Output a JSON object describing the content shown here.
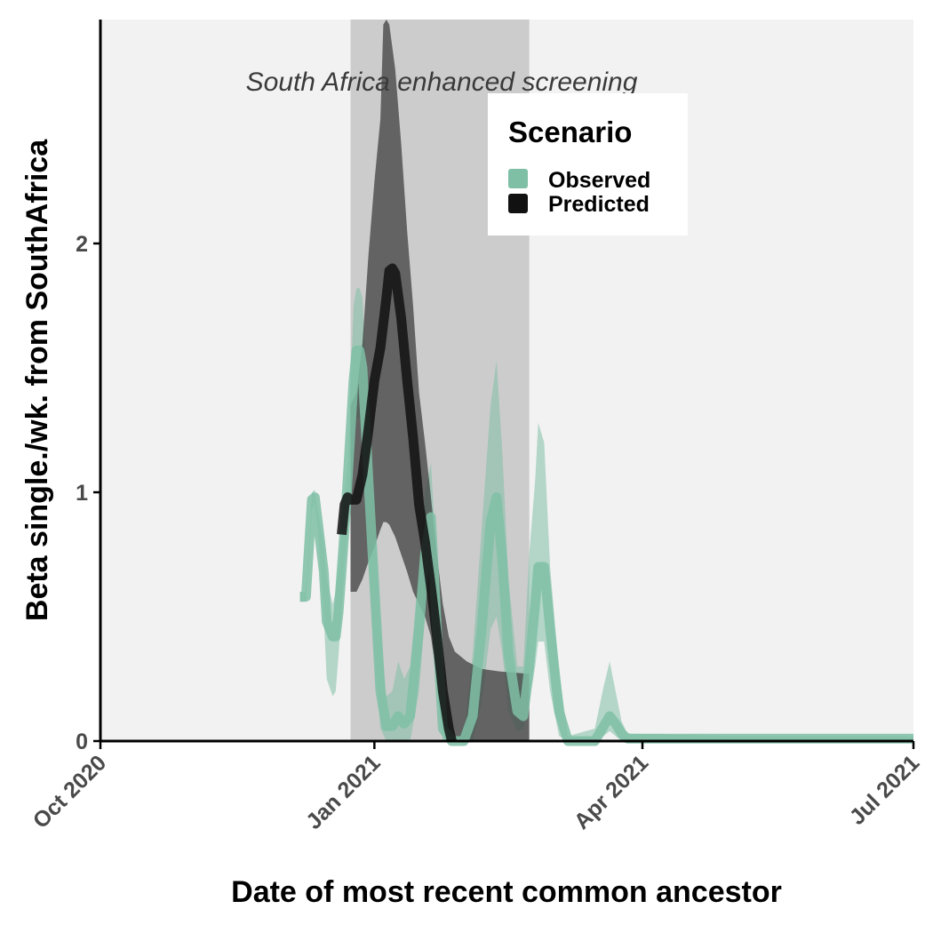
{
  "chart_data": {
    "type": "line",
    "xlabel": "Date of most recent common ancestor",
    "ylabel": "Beta single./wk. from SouthAfrica",
    "x_ticks": [
      "2020-10-01",
      "2021-01-01",
      "2021-04-01",
      "2021-07-01"
    ],
    "x_tick_labels": [
      "Oct 2020",
      "Jan 2021",
      "Apr 2021",
      "Jul 2021"
    ],
    "xlim": [
      "2020-10-01",
      "2021-07-01"
    ],
    "ylim": [
      0,
      2.9
    ],
    "y_ticks": [
      0,
      1,
      2
    ],
    "y_tick_labels": [
      "0",
      "1",
      "2"
    ],
    "grid": false,
    "panel_background": "#f2f2f2",
    "highlight_period": {
      "start": "2020-12-24",
      "end": "2021-02-22",
      "label": "South Africa enhanced screening",
      "color": "#cccccc"
    },
    "legend": {
      "title": "Scenario",
      "placement": "top-right",
      "entries": [
        {
          "label": "Observed",
          "color": "#7fbfa6"
        },
        {
          "label": "Predicted",
          "color": "#111111"
        }
      ]
    },
    "series": [
      {
        "name": "Observed",
        "color": "#7fbfa6",
        "points": [
          [
            "2020-12-07",
            0.58
          ],
          [
            "2020-12-09",
            0.58
          ],
          [
            "2020-12-11",
            0.97
          ],
          [
            "2020-12-12",
            0.98
          ],
          [
            "2020-12-13",
            0.88
          ],
          [
            "2020-12-15",
            0.68
          ],
          [
            "2020-12-16",
            0.48
          ],
          [
            "2020-12-18",
            0.42
          ],
          [
            "2020-12-19",
            0.42
          ],
          [
            "2020-12-20",
            0.52
          ],
          [
            "2020-12-22",
            0.85
          ],
          [
            "2020-12-23",
            1.05
          ],
          [
            "2020-12-25",
            1.45
          ],
          [
            "2020-12-26",
            1.57
          ],
          [
            "2020-12-27",
            1.57
          ],
          [
            "2020-12-28",
            1.5
          ],
          [
            "2020-12-30",
            1.05
          ],
          [
            "2021-01-01",
            0.62
          ],
          [
            "2021-01-03",
            0.2
          ],
          [
            "2021-01-05",
            0.06
          ],
          [
            "2021-01-07",
            0.06
          ],
          [
            "2021-01-09",
            0.1
          ],
          [
            "2021-01-11",
            0.07
          ],
          [
            "2021-01-13",
            0.1
          ],
          [
            "2021-01-16",
            0.45
          ],
          [
            "2021-01-18",
            0.75
          ],
          [
            "2021-01-20",
            0.9
          ],
          [
            "2021-01-22",
            0.45
          ],
          [
            "2021-01-24",
            0.05
          ],
          [
            "2021-01-27",
            0.0
          ],
          [
            "2021-01-31",
            0.0
          ],
          [
            "2021-02-03",
            0.1
          ],
          [
            "2021-02-06",
            0.45
          ],
          [
            "2021-02-09",
            0.88
          ],
          [
            "2021-02-11",
            0.98
          ],
          [
            "2021-02-13",
            0.72
          ],
          [
            "2021-02-15",
            0.35
          ],
          [
            "2021-02-18",
            0.12
          ],
          [
            "2021-02-20",
            0.1
          ],
          [
            "2021-02-22",
            0.3
          ],
          [
            "2021-02-24",
            0.55
          ],
          [
            "2021-02-25",
            0.7
          ],
          [
            "2021-02-27",
            0.7
          ],
          [
            "2021-03-01",
            0.45
          ],
          [
            "2021-03-04",
            0.12
          ],
          [
            "2021-03-07",
            0.0
          ],
          [
            "2021-03-16",
            0.0
          ],
          [
            "2021-03-19",
            0.06
          ],
          [
            "2021-03-21",
            0.1
          ],
          [
            "2021-03-23",
            0.07
          ],
          [
            "2021-03-25",
            0.03
          ],
          [
            "2021-03-27",
            0.01
          ],
          [
            "2021-05-01",
            0.01
          ],
          [
            "2021-06-01",
            0.01
          ],
          [
            "2021-07-01",
            0.01
          ]
        ],
        "ribbon": [
          [
            "2020-12-07",
            0.56,
            0.6
          ],
          [
            "2020-12-09",
            0.56,
            0.6
          ],
          [
            "2020-12-11",
            0.93,
            1.0
          ],
          [
            "2020-12-12",
            0.95,
            1.01
          ],
          [
            "2020-12-13",
            0.85,
            0.92
          ],
          [
            "2020-12-15",
            0.5,
            0.8
          ],
          [
            "2020-12-16",
            0.25,
            0.65
          ],
          [
            "2020-12-18",
            0.18,
            0.55
          ],
          [
            "2020-12-19",
            0.2,
            0.6
          ],
          [
            "2020-12-20",
            0.35,
            0.7
          ],
          [
            "2020-12-22",
            0.7,
            1.0
          ],
          [
            "2020-12-23",
            0.85,
            1.1
          ],
          [
            "2020-12-25",
            1.15,
            1.75
          ],
          [
            "2020-12-26",
            1.3,
            1.82
          ],
          [
            "2020-12-27",
            1.3,
            1.82
          ],
          [
            "2020-12-28",
            1.2,
            1.78
          ],
          [
            "2020-12-30",
            0.75,
            1.35
          ],
          [
            "2021-01-01",
            0.35,
            0.9
          ],
          [
            "2021-01-03",
            0.05,
            0.45
          ],
          [
            "2021-01-05",
            0.0,
            0.18
          ],
          [
            "2021-01-07",
            0.0,
            0.2
          ],
          [
            "2021-01-09",
            0.0,
            0.32
          ],
          [
            "2021-01-11",
            0.0,
            0.25
          ],
          [
            "2021-01-13",
            0.0,
            0.3
          ],
          [
            "2021-01-16",
            0.2,
            0.7
          ],
          [
            "2021-01-18",
            0.5,
            1.0
          ],
          [
            "2021-01-20",
            0.65,
            1.12
          ],
          [
            "2021-01-22",
            0.2,
            0.7
          ],
          [
            "2021-01-24",
            0.0,
            0.2
          ],
          [
            "2021-01-27",
            0.0,
            0.02
          ],
          [
            "2021-01-31",
            0.0,
            0.02
          ],
          [
            "2021-02-03",
            0.0,
            0.35
          ],
          [
            "2021-02-06",
            0.15,
            0.85
          ],
          [
            "2021-02-09",
            0.45,
            1.35
          ],
          [
            "2021-02-11",
            0.5,
            1.53
          ],
          [
            "2021-02-13",
            0.35,
            1.15
          ],
          [
            "2021-02-15",
            0.12,
            0.65
          ],
          [
            "2021-02-18",
            0.04,
            0.3
          ],
          [
            "2021-02-20",
            0.05,
            0.3
          ],
          [
            "2021-02-22",
            0.15,
            0.75
          ],
          [
            "2021-02-24",
            0.3,
            1.05
          ],
          [
            "2021-02-25",
            0.4,
            1.28
          ],
          [
            "2021-02-27",
            0.4,
            1.2
          ],
          [
            "2021-03-01",
            0.2,
            0.7
          ],
          [
            "2021-03-04",
            0.02,
            0.28
          ],
          [
            "2021-03-07",
            0.0,
            0.02
          ],
          [
            "2021-03-16",
            0.0,
            0.05
          ],
          [
            "2021-03-19",
            0.02,
            0.22
          ],
          [
            "2021-03-21",
            0.04,
            0.32
          ],
          [
            "2021-03-23",
            0.02,
            0.2
          ],
          [
            "2021-03-25",
            0.0,
            0.08
          ],
          [
            "2021-03-27",
            0.0,
            0.03
          ],
          [
            "2021-05-01",
            0.0,
            0.02
          ],
          [
            "2021-06-01",
            0.0,
            0.02
          ],
          [
            "2021-07-01",
            0.0,
            0.02
          ]
        ]
      },
      {
        "name": "Predicted",
        "color": "#111111",
        "points": [
          [
            "2020-12-21",
            0.83
          ],
          [
            "2020-12-22",
            0.95
          ],
          [
            "2020-12-23",
            0.98
          ],
          [
            "2020-12-24",
            0.97
          ],
          [
            "2020-12-26",
            0.97
          ],
          [
            "2020-12-28",
            1.07
          ],
          [
            "2020-12-30",
            1.25
          ],
          [
            "2021-01-01",
            1.45
          ],
          [
            "2021-01-03",
            1.58
          ],
          [
            "2021-01-05",
            1.78
          ],
          [
            "2021-01-06",
            1.89
          ],
          [
            "2021-01-07",
            1.9
          ],
          [
            "2021-01-08",
            1.88
          ],
          [
            "2021-01-10",
            1.7
          ],
          [
            "2021-01-12",
            1.45
          ],
          [
            "2021-01-14",
            1.22
          ],
          [
            "2021-01-16",
            0.95
          ],
          [
            "2021-01-18",
            0.8
          ],
          [
            "2021-01-20",
            0.62
          ],
          [
            "2021-01-22",
            0.42
          ],
          [
            "2021-01-24",
            0.2
          ],
          [
            "2021-01-26",
            0.05
          ],
          [
            "2021-01-27",
            0.0
          ]
        ],
        "ribbon": [
          [
            "2020-12-24",
            0.6,
            1.35
          ],
          [
            "2020-12-26",
            0.6,
            1.4
          ],
          [
            "2020-12-28",
            0.65,
            1.6
          ],
          [
            "2020-12-30",
            0.72,
            1.95
          ],
          [
            "2021-01-01",
            0.78,
            2.25
          ],
          [
            "2021-01-03",
            0.85,
            2.5
          ],
          [
            "2021-01-04",
            0.88,
            2.88
          ],
          [
            "2021-01-05",
            0.88,
            2.9
          ],
          [
            "2021-01-06",
            0.87,
            2.88
          ],
          [
            "2021-01-08",
            0.82,
            2.7
          ],
          [
            "2021-01-10",
            0.75,
            2.4
          ],
          [
            "2021-01-12",
            0.68,
            2.05
          ],
          [
            "2021-01-14",
            0.6,
            1.75
          ],
          [
            "2021-01-16",
            0.55,
            1.4
          ],
          [
            "2021-01-18",
            0.5,
            1.2
          ],
          [
            "2021-01-20",
            0.42,
            0.98
          ],
          [
            "2021-01-22",
            0.25,
            0.75
          ],
          [
            "2021-01-24",
            0.08,
            0.55
          ],
          [
            "2021-01-26",
            0.02,
            0.42
          ],
          [
            "2021-01-28",
            0.0,
            0.36
          ],
          [
            "2021-02-01",
            0.0,
            0.32
          ],
          [
            "2021-02-06",
            0.0,
            0.29
          ],
          [
            "2021-02-12",
            0.0,
            0.28
          ],
          [
            "2021-02-22",
            0.0,
            0.27
          ]
        ]
      }
    ]
  }
}
